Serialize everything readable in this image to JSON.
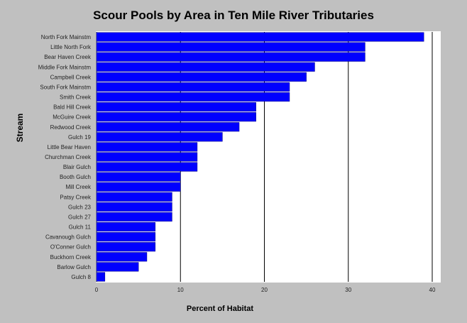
{
  "chart_data": {
    "type": "bar",
    "orientation": "horizontal",
    "title": "Scour Pools by Area in Ten Mile River Tributaries",
    "xlabel": "Percent of Habitat",
    "ylabel": "Stream",
    "categories": [
      "North Fork Mainstm",
      "Little North Fork",
      "Bear Haven Creek",
      "Middle Fork Mainstm",
      "Campbell Creek",
      "South Fork Mainstm",
      "Smith Creek",
      "Bald Hill Creek",
      "McGuire Creek",
      "Redwood Creek",
      "Gulch 19",
      "Little Bear Haven",
      "Churchman Creek",
      "Blair Gulch",
      "Booth Gulch",
      "Mill Creek",
      "Patsy Creek",
      "Gulch 23",
      "Gulch 27",
      "Gulch 11",
      "Cavanough Gulch",
      "O'Conner Gulch",
      "Buckhorn Creek",
      "Barlow Gulch",
      "Gulch 8"
    ],
    "values": [
      39,
      32,
      32,
      26,
      25,
      23,
      23,
      19,
      19,
      17,
      15,
      12,
      12,
      12,
      10,
      10,
      9,
      9,
      9,
      7,
      7,
      7,
      6,
      5,
      1
    ],
    "xlim": [
      0,
      40
    ],
    "xticks": [
      0,
      10,
      20,
      30,
      40
    ],
    "grid": "vertical",
    "bar_color": "#0000ff",
    "plot_background": "#ffffff",
    "page_background": "#c0c0c0"
  }
}
